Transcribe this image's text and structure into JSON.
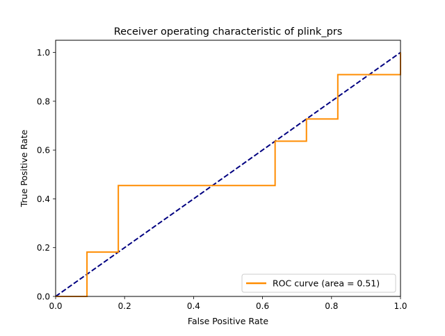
{
  "chart_data": {
    "type": "line",
    "title": "Receiver operating characteristic of plink_prs",
    "xlabel": "False Positive Rate",
    "ylabel": "True Positive Rate",
    "xlim": [
      0,
      1
    ],
    "ylim": [
      0,
      1.05
    ],
    "xticks": [
      0.0,
      0.2,
      0.4,
      0.6,
      0.8,
      1.0
    ],
    "yticks": [
      0.0,
      0.2,
      0.4,
      0.6,
      0.8,
      1.0
    ],
    "xtick_labels": [
      "0.0",
      "0.2",
      "0.4",
      "0.6",
      "0.8",
      "1.0"
    ],
    "ytick_labels": [
      "0.0",
      "0.2",
      "0.4",
      "0.6",
      "0.8",
      "1.0"
    ],
    "grid": false,
    "legend_position": "lower-right",
    "series": [
      {
        "name": "ROC curve (area = 0.51)",
        "color": "#ff8c00",
        "style": "solid",
        "x": [
          0,
          0.0909,
          0.0909,
          0.1818,
          0.1818,
          0.6364,
          0.6364,
          0.7273,
          0.7273,
          0.8182,
          0.8182,
          1.0,
          1.0
        ],
        "y": [
          0,
          0,
          0.1818,
          0.1818,
          0.4545,
          0.4545,
          0.6364,
          0.6364,
          0.7273,
          0.7273,
          0.9091,
          0.9091,
          1.0
        ]
      },
      {
        "color": "#000080",
        "style": "dashed",
        "x": [
          0,
          1
        ],
        "y": [
          0,
          1
        ]
      }
    ]
  }
}
